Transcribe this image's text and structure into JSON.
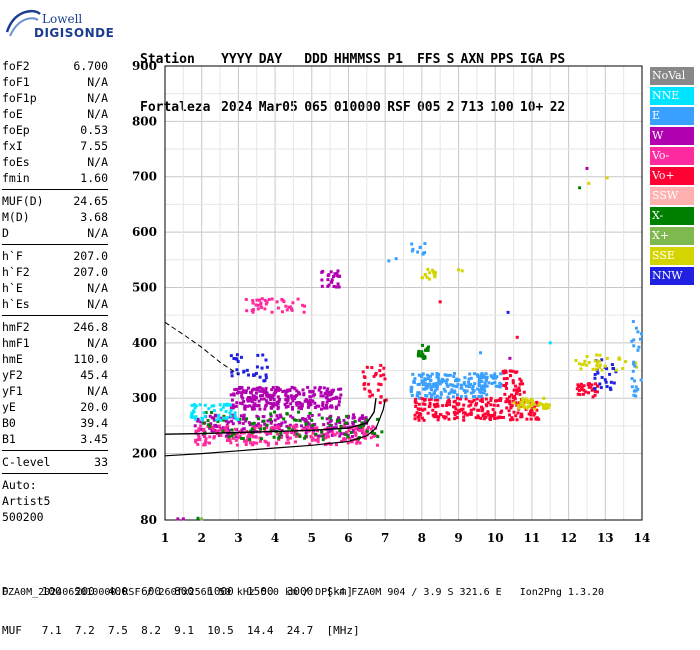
{
  "logo": {
    "line1": "Lowell",
    "line2": "DIGISONDE"
  },
  "header": {
    "labels": [
      "Station",
      "YYYY",
      "DAY",
      "DDD",
      "HHMMSS",
      "P1",
      "FFS",
      "S",
      "AXN",
      "PPS",
      "IGA",
      "PS"
    ],
    "values": [
      "Fortaleza",
      "2024",
      "Mar05",
      "065",
      "010000",
      "RSF",
      "005",
      "2",
      "713",
      "100",
      "10+",
      "22"
    ]
  },
  "params": [
    {
      "k": "foF2",
      "v": "6.700"
    },
    {
      "k": "foF1",
      "v": "N/A"
    },
    {
      "k": "foF1p",
      "v": "N/A"
    },
    {
      "k": "foE",
      "v": "N/A"
    },
    {
      "k": "foEp",
      "v": "0.53"
    },
    {
      "k": "fxI",
      "v": "7.55"
    },
    {
      "k": "foEs",
      "v": "N/A"
    },
    {
      "k": "fmin",
      "v": "1.60"
    },
    {
      "sep": true
    },
    {
      "k": "MUF(D)",
      "v": "24.65"
    },
    {
      "k": "M(D)",
      "v": "3.68"
    },
    {
      "k": "D",
      "v": "N/A"
    },
    {
      "sep": true
    },
    {
      "k": "h`F",
      "v": "207.0"
    },
    {
      "k": "h`F2",
      "v": "207.0"
    },
    {
      "k": "h`E",
      "v": "N/A"
    },
    {
      "k": "h`Es",
      "v": "N/A"
    },
    {
      "sep": true
    },
    {
      "k": "hmF2",
      "v": "246.8"
    },
    {
      "k": "hmF1",
      "v": "N/A"
    },
    {
      "k": "hmE",
      "v": "110.0"
    },
    {
      "k": "yF2",
      "v": "45.4"
    },
    {
      "k": "yF1",
      "v": "N/A"
    },
    {
      "k": "yE",
      "v": "20.0"
    },
    {
      "k": "B0",
      "v": "39.4"
    },
    {
      "k": "B1",
      "v": "3.45"
    },
    {
      "sep": true
    },
    {
      "k": "C-level",
      "v": "33"
    },
    {
      "sep": true
    },
    {
      "plain": "Auto:"
    },
    {
      "plain": "Artist5"
    },
    {
      "plain": "500200"
    }
  ],
  "legend": [
    {
      "label": "NoVal",
      "color": "#888888"
    },
    {
      "label": "NNE",
      "color": "#00e5ff"
    },
    {
      "label": "E",
      "color": "#3aa0ff"
    },
    {
      "label": "W",
      "color": "#b000b0"
    },
    {
      "label": "Vo-",
      "color": "#ff2aa0"
    },
    {
      "label": "Vo+",
      "color": "#ff0033"
    },
    {
      "label": "SSW",
      "color": "#ffb0b0"
    },
    {
      "label": "X-",
      "color": "#008000"
    },
    {
      "label": "X+",
      "color": "#80b850"
    },
    {
      "label": "SSE",
      "color": "#d4d400"
    },
    {
      "label": "NNW",
      "color": "#2020e0"
    }
  ],
  "chart_data": {
    "type": "scatter",
    "x_ticks": [
      1,
      2,
      3,
      4,
      5,
      6,
      7,
      8,
      9,
      10,
      11,
      12,
      13,
      14
    ],
    "y_ticks": [
      80,
      200,
      300,
      400,
      500,
      600,
      700,
      800,
      900
    ],
    "xlim": [
      1,
      14
    ],
    "ylim": [
      80,
      900
    ],
    "grid": true,
    "clusters": [
      {
        "color": "#b000b0",
        "x": [
          2.8,
          5.8
        ],
        "y": [
          280,
          320
        ],
        "n": 260
      },
      {
        "color": "#b000b0",
        "x": [
          1.8,
          6.5
        ],
        "y": [
          230,
          270
        ],
        "n": 220
      },
      {
        "color": "#ff2aa0",
        "x": [
          1.8,
          6.8
        ],
        "y": [
          215,
          250
        ],
        "n": 220
      },
      {
        "color": "#008000",
        "x": [
          2.0,
          7.0
        ],
        "y": [
          225,
          275
        ],
        "n": 90
      },
      {
        "color": "#ff0033",
        "x": [
          7.8,
          11.2
        ],
        "y": [
          260,
          300
        ],
        "n": 220
      },
      {
        "color": "#3aa0ff",
        "x": [
          7.7,
          9.8
        ],
        "y": [
          300,
          345
        ],
        "n": 180
      },
      {
        "color": "#00e5ff",
        "x": [
          1.7,
          3.0
        ],
        "y": [
          260,
          290
        ],
        "n": 50
      },
      {
        "color": "#2020e0",
        "x": [
          2.8,
          3.8
        ],
        "y": [
          330,
          380
        ],
        "n": 30
      },
      {
        "color": "#ff2aa0",
        "x": [
          3.2,
          4.9
        ],
        "y": [
          455,
          480
        ],
        "n": 40
      },
      {
        "color": "#b000b0",
        "x": [
          5.2,
          5.8
        ],
        "y": [
          500,
          530
        ],
        "n": 25
      },
      {
        "color": "#ff0033",
        "x": [
          10.2,
          10.8
        ],
        "y": [
          300,
          350
        ],
        "n": 40
      },
      {
        "color": "#d4d400",
        "x": [
          10.5,
          11.5
        ],
        "y": [
          280,
          300
        ],
        "n": 40
      },
      {
        "color": "#3aa0ff",
        "x": [
          9.6,
          10.2
        ],
        "y": [
          320,
          345
        ],
        "n": 25
      },
      {
        "color": "#ff0033",
        "x": [
          12.2,
          12.8
        ],
        "y": [
          300,
          330
        ],
        "n": 30
      },
      {
        "color": "#2020e0",
        "x": [
          12.7,
          13.3
        ],
        "y": [
          310,
          370
        ],
        "n": 25
      },
      {
        "color": "#d4d400",
        "x": [
          12.2,
          14.0
        ],
        "y": [
          350,
          380
        ],
        "n": 30
      },
      {
        "color": "#3aa0ff",
        "x": [
          13.7,
          14.0
        ],
        "y": [
          300,
          440
        ],
        "n": 25
      },
      {
        "color": "#008000",
        "x": [
          7.9,
          8.2
        ],
        "y": [
          370,
          400
        ],
        "n": 20
      },
      {
        "color": "#d4d400",
        "x": [
          8.0,
          8.4
        ],
        "y": [
          515,
          535
        ],
        "n": 15
      },
      {
        "color": "#3aa0ff",
        "x": [
          7.7,
          8.1
        ],
        "y": [
          560,
          580
        ],
        "n": 10
      },
      {
        "color": "#ff0033",
        "x": [
          6.4,
          7.1
        ],
        "y": [
          290,
          360
        ],
        "n": 30
      }
    ],
    "points": [
      {
        "x": 1.35,
        "y": 82,
        "color": "#b000b0"
      },
      {
        "x": 1.5,
        "y": 82,
        "color": "#b000b0"
      },
      {
        "x": 1.9,
        "y": 83,
        "color": "#008000"
      },
      {
        "x": 2.0,
        "y": 82,
        "color": "#80b850"
      },
      {
        "x": 12.5,
        "y": 715,
        "color": "#b000b0"
      },
      {
        "x": 12.3,
        "y": 680,
        "color": "#008000"
      },
      {
        "x": 12.55,
        "y": 688,
        "color": "#d4d400"
      },
      {
        "x": 13.05,
        "y": 698,
        "color": "#d4d400"
      },
      {
        "x": 10.35,
        "y": 455,
        "color": "#2020e0"
      },
      {
        "x": 10.6,
        "y": 410,
        "color": "#ff0033"
      },
      {
        "x": 11.5,
        "y": 400,
        "color": "#00e5ff"
      },
      {
        "x": 9.0,
        "y": 532,
        "color": "#d4d400"
      },
      {
        "x": 9.1,
        "y": 530,
        "color": "#d4d400"
      },
      {
        "x": 7.3,
        "y": 552,
        "color": "#3aa0ff"
      },
      {
        "x": 7.1,
        "y": 548,
        "color": "#3aa0ff"
      },
      {
        "x": 8.5,
        "y": 474,
        "color": "#ff0033"
      },
      {
        "x": 9.6,
        "y": 382,
        "color": "#3aa0ff"
      },
      {
        "x": 10.4,
        "y": 372,
        "color": "#b000b0"
      }
    ],
    "virtual_height_curve": [
      [
        1,
        196
      ],
      [
        2,
        200
      ],
      [
        3,
        205
      ],
      [
        4,
        210
      ],
      [
        5,
        215
      ],
      [
        6,
        222
      ],
      [
        6.5,
        232
      ],
      [
        6.75,
        246
      ],
      [
        6.85,
        262
      ],
      [
        6.95,
        280
      ],
      [
        7.0,
        298
      ]
    ],
    "true_height_curve": [
      [
        1,
        235
      ],
      [
        2,
        236
      ],
      [
        3,
        238
      ],
      [
        4,
        240
      ],
      [
        5,
        242
      ],
      [
        6,
        246
      ],
      [
        6.5,
        255
      ],
      [
        6.7,
        275
      ],
      [
        6.75,
        300
      ]
    ],
    "extrapolated_curve": [
      [
        1,
        437
      ],
      [
        1.5,
        415
      ],
      [
        2,
        392
      ],
      [
        2.5,
        365
      ],
      [
        3,
        343
      ]
    ]
  },
  "footer": {
    "row1": "D     100  200  400  600  800  1000  1500  3000  [km]",
    "row2": "MUF   7.1  7.2  7.5  8.2  9.1  10.5  14.4  24.7  [MHz]",
    "row3": "FZA0M_2024065010000.RSF / 260fx256h 50 kHz 5.0 km / DPS-4 FZA0M 904 / 3.9 S 321.6 E   Ion2Png 1.3.20"
  }
}
